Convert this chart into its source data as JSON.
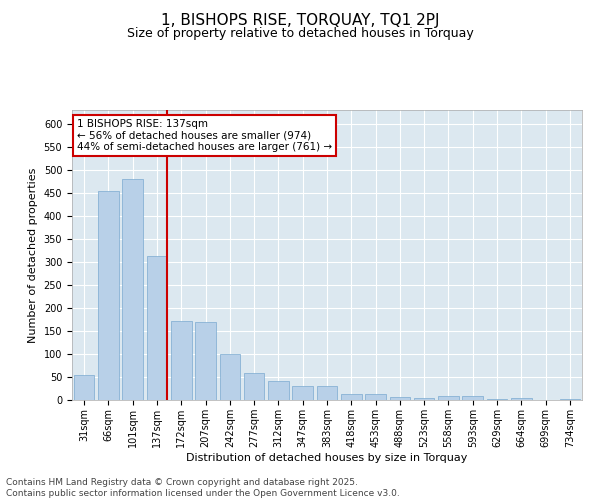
{
  "title": "1, BISHOPS RISE, TORQUAY, TQ1 2PJ",
  "subtitle": "Size of property relative to detached houses in Torquay",
  "xlabel": "Distribution of detached houses by size in Torquay",
  "ylabel": "Number of detached properties",
  "bar_color": "#b8d0e8",
  "bar_edge_color": "#7aaad0",
  "bg_color": "#dce8f0",
  "grid_color": "#ffffff",
  "categories": [
    "31sqm",
    "66sqm",
    "101sqm",
    "137sqm",
    "172sqm",
    "207sqm",
    "242sqm",
    "277sqm",
    "312sqm",
    "347sqm",
    "383sqm",
    "418sqm",
    "453sqm",
    "488sqm",
    "523sqm",
    "558sqm",
    "593sqm",
    "629sqm",
    "664sqm",
    "699sqm",
    "734sqm"
  ],
  "values": [
    55,
    455,
    480,
    312,
    172,
    170,
    100,
    58,
    42,
    30,
    30,
    14,
    14,
    7,
    4,
    8,
    8,
    3,
    5,
    1,
    2
  ],
  "vline_index": 3,
  "vline_color": "#cc0000",
  "annotation_text": "1 BISHOPS RISE: 137sqm\n← 56% of detached houses are smaller (974)\n44% of semi-detached houses are larger (761) →",
  "annotation_box_color": "#cc0000",
  "ylim": [
    0,
    630
  ],
  "yticks": [
    0,
    50,
    100,
    150,
    200,
    250,
    300,
    350,
    400,
    450,
    500,
    550,
    600
  ],
  "footnote": "Contains HM Land Registry data © Crown copyright and database right 2025.\nContains public sector information licensed under the Open Government Licence v3.0.",
  "title_fontsize": 11,
  "subtitle_fontsize": 9,
  "annotation_fontsize": 7.5,
  "footnote_fontsize": 6.5,
  "tick_fontsize": 7,
  "ylabel_fontsize": 8,
  "xlabel_fontsize": 8
}
